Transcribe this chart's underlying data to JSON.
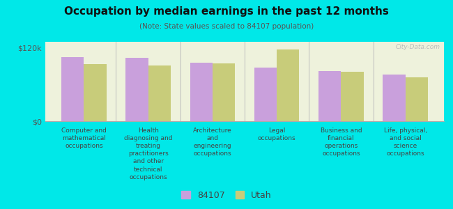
{
  "title": "Occupation by median earnings in the past 12 months",
  "subtitle": "(Note: State values scaled to 84107 population)",
  "background_color": "#00e8e8",
  "plot_background": "#eef2dc",
  "categories": [
    "Computer and\nmathematical\noccupations",
    "Health\ndiagnosing and\ntreating\npractitioners\nand other\ntechnical\noccupations",
    "Architecture\nand\nengineering\noccupations",
    "Legal\noccupations",
    "Business and\nfinancial\noperations\noccupations",
    "Life, physical,\nand social\nscience\noccupations"
  ],
  "values_84107": [
    105000,
    104000,
    96000,
    88000,
    82000,
    76000
  ],
  "values_utah": [
    93000,
    91000,
    95000,
    118000,
    81000,
    72000
  ],
  "color_84107": "#c9a0dc",
  "color_utah": "#c8cc7a",
  "ylim": [
    0,
    130000
  ],
  "yticks": [
    0,
    120000
  ],
  "ytick_labels": [
    "$0",
    "$120k"
  ],
  "legend_84107": "84107",
  "legend_utah": "Utah",
  "watermark": "City-Data.com"
}
